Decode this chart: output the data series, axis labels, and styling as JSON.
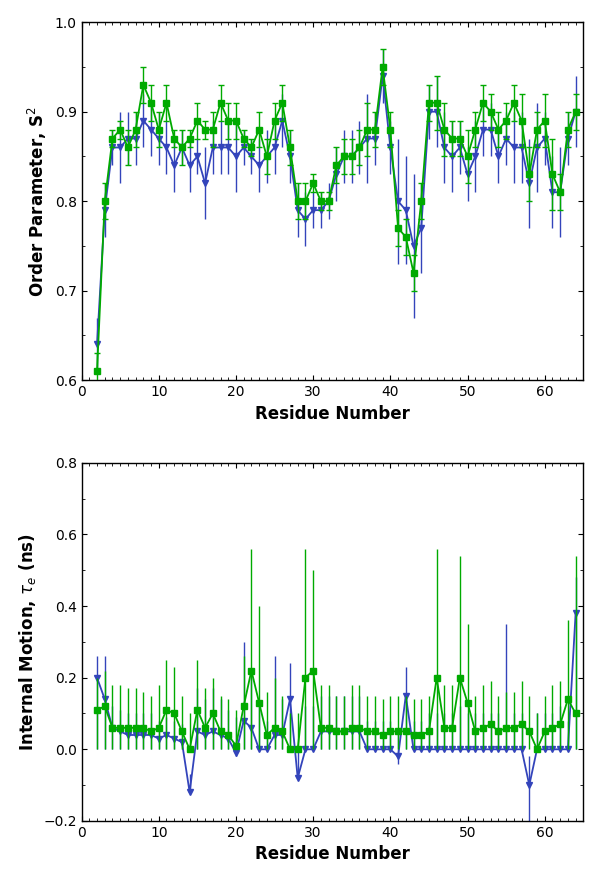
{
  "s2_green_x": [
    2,
    3,
    4,
    5,
    6,
    7,
    8,
    9,
    10,
    11,
    12,
    13,
    14,
    15,
    16,
    17,
    18,
    19,
    20,
    21,
    22,
    23,
    24,
    25,
    26,
    27,
    28,
    29,
    30,
    31,
    32,
    33,
    34,
    35,
    36,
    37,
    38,
    39,
    40,
    41,
    42,
    43,
    44,
    45,
    46,
    47,
    48,
    49,
    50,
    51,
    52,
    53,
    54,
    55,
    56,
    57,
    58,
    59,
    60,
    61,
    62,
    63,
    64
  ],
  "s2_green_y": [
    0.61,
    0.8,
    0.87,
    0.88,
    0.86,
    0.88,
    0.93,
    0.91,
    0.88,
    0.91,
    0.87,
    0.86,
    0.87,
    0.89,
    0.88,
    0.88,
    0.91,
    0.89,
    0.89,
    0.87,
    0.86,
    0.88,
    0.85,
    0.89,
    0.91,
    0.86,
    0.8,
    0.8,
    0.82,
    0.8,
    0.8,
    0.84,
    0.85,
    0.85,
    0.86,
    0.88,
    0.88,
    0.95,
    0.88,
    0.77,
    0.76,
    0.72,
    0.8,
    0.91,
    0.91,
    0.88,
    0.87,
    0.87,
    0.85,
    0.88,
    0.91,
    0.9,
    0.88,
    0.89,
    0.91,
    0.89,
    0.83,
    0.88,
    0.89,
    0.83,
    0.81,
    0.88,
    0.9
  ],
  "s2_green_yerr": [
    0.02,
    0.02,
    0.01,
    0.01,
    0.02,
    0.02,
    0.02,
    0.02,
    0.02,
    0.02,
    0.01,
    0.02,
    0.01,
    0.02,
    0.01,
    0.02,
    0.02,
    0.02,
    0.02,
    0.01,
    0.01,
    0.02,
    0.02,
    0.02,
    0.02,
    0.02,
    0.02,
    0.02,
    0.01,
    0.01,
    0.01,
    0.02,
    0.02,
    0.02,
    0.02,
    0.03,
    0.02,
    0.02,
    0.02,
    0.02,
    0.02,
    0.02,
    0.02,
    0.02,
    0.03,
    0.03,
    0.02,
    0.02,
    0.03,
    0.02,
    0.02,
    0.02,
    0.02,
    0.02,
    0.02,
    0.03,
    0.03,
    0.02,
    0.03,
    0.04,
    0.02,
    0.02,
    0.02
  ],
  "s2_blue_x": [
    2,
    3,
    4,
    5,
    6,
    7,
    8,
    9,
    10,
    11,
    12,
    13,
    14,
    15,
    16,
    17,
    18,
    19,
    20,
    21,
    22,
    23,
    24,
    25,
    26,
    27,
    28,
    29,
    30,
    31,
    32,
    33,
    34,
    35,
    36,
    37,
    38,
    39,
    40,
    41,
    42,
    43,
    44,
    45,
    46,
    47,
    48,
    49,
    50,
    51,
    52,
    53,
    54,
    55,
    56,
    57,
    58,
    59,
    60,
    61,
    62,
    63,
    64
  ],
  "s2_blue_y": [
    0.64,
    0.79,
    0.86,
    0.86,
    0.87,
    0.87,
    0.89,
    0.88,
    0.87,
    0.86,
    0.84,
    0.86,
    0.84,
    0.85,
    0.82,
    0.86,
    0.86,
    0.86,
    0.85,
    0.86,
    0.85,
    0.84,
    0.85,
    0.86,
    0.89,
    0.85,
    0.79,
    0.78,
    0.79,
    0.79,
    0.8,
    0.83,
    0.85,
    0.85,
    0.86,
    0.87,
    0.87,
    0.94,
    0.86,
    0.8,
    0.79,
    0.75,
    0.77,
    0.9,
    0.9,
    0.86,
    0.85,
    0.86,
    0.83,
    0.85,
    0.88,
    0.88,
    0.85,
    0.87,
    0.86,
    0.86,
    0.82,
    0.86,
    0.87,
    0.81,
    0.81,
    0.87,
    0.9
  ],
  "s2_blue_yerr": [
    0.03,
    0.03,
    0.02,
    0.04,
    0.03,
    0.03,
    0.03,
    0.03,
    0.03,
    0.03,
    0.03,
    0.02,
    0.03,
    0.02,
    0.04,
    0.03,
    0.03,
    0.03,
    0.04,
    0.02,
    0.02,
    0.03,
    0.03,
    0.03,
    0.03,
    0.03,
    0.03,
    0.03,
    0.02,
    0.02,
    0.02,
    0.03,
    0.03,
    0.03,
    0.03,
    0.05,
    0.03,
    0.03,
    0.03,
    0.07,
    0.06,
    0.08,
    0.05,
    0.03,
    0.04,
    0.04,
    0.04,
    0.03,
    0.03,
    0.04,
    0.03,
    0.03,
    0.03,
    0.03,
    0.04,
    0.04,
    0.05,
    0.05,
    0.03,
    0.04,
    0.05,
    0.03,
    0.04
  ],
  "te_green_x": [
    2,
    3,
    4,
    5,
    6,
    7,
    8,
    9,
    10,
    11,
    12,
    13,
    14,
    15,
    16,
    17,
    18,
    19,
    20,
    21,
    22,
    23,
    24,
    25,
    26,
    27,
    28,
    29,
    30,
    31,
    32,
    33,
    34,
    35,
    36,
    37,
    38,
    39,
    40,
    41,
    42,
    43,
    44,
    45,
    46,
    47,
    48,
    49,
    50,
    51,
    52,
    53,
    54,
    55,
    56,
    57,
    58,
    59,
    60,
    61,
    62,
    63,
    64
  ],
  "te_green_y": [
    0.11,
    0.12,
    0.06,
    0.06,
    0.06,
    0.06,
    0.06,
    0.05,
    0.06,
    0.11,
    0.1,
    0.05,
    0.0,
    0.11,
    0.06,
    0.1,
    0.05,
    0.04,
    0.01,
    0.12,
    0.22,
    0.13,
    0.04,
    0.06,
    0.05,
    0.0,
    0.0,
    0.2,
    0.22,
    0.06,
    0.06,
    0.05,
    0.05,
    0.06,
    0.06,
    0.05,
    0.05,
    0.04,
    0.05,
    0.05,
    0.05,
    0.04,
    0.04,
    0.05,
    0.2,
    0.06,
    0.06,
    0.2,
    0.13,
    0.05,
    0.06,
    0.07,
    0.05,
    0.06,
    0.06,
    0.07,
    0.05,
    0.0,
    0.05,
    0.06,
    0.07,
    0.14,
    0.1
  ],
  "te_green_yerr_lo": [
    0.11,
    0.12,
    0.06,
    0.06,
    0.06,
    0.06,
    0.06,
    0.05,
    0.06,
    0.11,
    0.1,
    0.05,
    0.0,
    0.11,
    0.06,
    0.1,
    0.05,
    0.04,
    0.01,
    0.12,
    0.22,
    0.13,
    0.04,
    0.06,
    0.05,
    0.0,
    0.0,
    0.2,
    0.22,
    0.06,
    0.06,
    0.05,
    0.05,
    0.06,
    0.06,
    0.05,
    0.05,
    0.04,
    0.05,
    0.05,
    0.05,
    0.04,
    0.04,
    0.05,
    0.2,
    0.06,
    0.06,
    0.2,
    0.13,
    0.05,
    0.06,
    0.07,
    0.05,
    0.06,
    0.06,
    0.07,
    0.05,
    0.0,
    0.05,
    0.06,
    0.07,
    0.14,
    0.1
  ],
  "te_green_yerr_hi": [
    0.09,
    0.1,
    0.12,
    0.12,
    0.11,
    0.11,
    0.1,
    0.1,
    0.12,
    0.14,
    0.13,
    0.1,
    0.1,
    0.14,
    0.11,
    0.1,
    0.1,
    0.1,
    0.1,
    0.14,
    0.34,
    0.27,
    0.12,
    0.14,
    0.1,
    0.1,
    0.1,
    0.36,
    0.28,
    0.12,
    0.12,
    0.1,
    0.1,
    0.12,
    0.12,
    0.1,
    0.1,
    0.1,
    0.1,
    0.1,
    0.1,
    0.1,
    0.1,
    0.1,
    0.36,
    0.12,
    0.12,
    0.34,
    0.22,
    0.1,
    0.12,
    0.12,
    0.1,
    0.1,
    0.1,
    0.12,
    0.1,
    0.1,
    0.1,
    0.12,
    0.12,
    0.22,
    0.44
  ],
  "te_blue_x": [
    2,
    3,
    4,
    5,
    6,
    7,
    8,
    9,
    10,
    11,
    12,
    13,
    14,
    15,
    16,
    17,
    18,
    19,
    20,
    21,
    22,
    23,
    24,
    25,
    26,
    27,
    28,
    29,
    30,
    31,
    32,
    33,
    34,
    35,
    36,
    37,
    38,
    39,
    40,
    41,
    42,
    43,
    44,
    45,
    46,
    47,
    48,
    49,
    50,
    51,
    52,
    53,
    54,
    55,
    56,
    57,
    58,
    59,
    60,
    61,
    62,
    63,
    64
  ],
  "te_blue_y": [
    0.2,
    0.14,
    0.06,
    0.05,
    0.04,
    0.04,
    0.04,
    0.04,
    0.03,
    0.04,
    0.03,
    0.02,
    -0.12,
    0.05,
    0.04,
    0.05,
    0.04,
    0.03,
    -0.01,
    0.08,
    0.06,
    0.0,
    0.0,
    0.04,
    0.04,
    0.14,
    -0.08,
    0.0,
    0.0,
    0.05,
    0.05,
    0.05,
    0.05,
    0.05,
    0.05,
    0.0,
    0.0,
    0.0,
    0.0,
    -0.02,
    0.15,
    0.0,
    0.0,
    0.0,
    0.0,
    0.0,
    0.0,
    0.0,
    0.0,
    0.0,
    0.0,
    0.0,
    0.0,
    0.0,
    0.0,
    0.0,
    -0.1,
    0.0,
    0.0,
    0.0,
    0.0,
    0.0,
    0.38
  ],
  "te_blue_yerr_lo": [
    0.2,
    0.14,
    0.06,
    0.05,
    0.04,
    0.04,
    0.04,
    0.04,
    0.03,
    0.04,
    0.03,
    0.02,
    0.0,
    0.05,
    0.04,
    0.05,
    0.04,
    0.03,
    0.01,
    0.08,
    0.06,
    0.0,
    0.0,
    0.04,
    0.04,
    0.14,
    0.0,
    0.0,
    0.0,
    0.05,
    0.05,
    0.05,
    0.05,
    0.05,
    0.05,
    0.0,
    0.0,
    0.0,
    0.0,
    0.02,
    0.15,
    0.0,
    0.0,
    0.0,
    0.0,
    0.0,
    0.0,
    0.0,
    0.0,
    0.0,
    0.0,
    0.0,
    0.0,
    0.0,
    0.0,
    0.0,
    0.1,
    0.0,
    0.0,
    0.0,
    0.0,
    0.0,
    0.38
  ],
  "te_blue_yerr_hi": [
    0.06,
    0.12,
    0.06,
    0.06,
    0.06,
    0.06,
    0.06,
    0.06,
    0.05,
    0.05,
    0.05,
    0.05,
    0.05,
    0.12,
    0.1,
    0.12,
    0.1,
    0.08,
    0.1,
    0.22,
    0.16,
    0.12,
    0.08,
    0.22,
    0.1,
    0.1,
    0.08,
    0.12,
    0.12,
    0.1,
    0.1,
    0.1,
    0.1,
    0.1,
    0.1,
    0.08,
    0.08,
    0.08,
    0.08,
    0.08,
    0.08,
    0.08,
    0.08,
    0.1,
    0.1,
    0.1,
    0.1,
    0.12,
    0.1,
    0.1,
    0.1,
    0.1,
    0.1,
    0.35,
    0.1,
    0.1,
    0.08,
    0.1,
    0.1,
    0.1,
    0.12,
    0.08,
    0.1
  ],
  "green_color": "#00aa00",
  "blue_color": "#3344bb",
  "bg_color": "#ffffff",
  "s2_ylabel": "Order Parameter, S$^2$",
  "te_ylabel": "Internal Motion, $\\tau_e$ (ns)",
  "xlabel": "Residue Number",
  "s2_ylim": [
    0.6,
    1.0
  ],
  "te_ylim": [
    -0.2,
    0.8
  ],
  "xlim": [
    0,
    65
  ],
  "s2_yticks": [
    0.6,
    0.7,
    0.8,
    0.9,
    1.0
  ],
  "te_yticks": [
    -0.2,
    0.0,
    0.2,
    0.4,
    0.6,
    0.8
  ],
  "xticks": [
    0,
    10,
    20,
    30,
    40,
    50,
    60
  ]
}
